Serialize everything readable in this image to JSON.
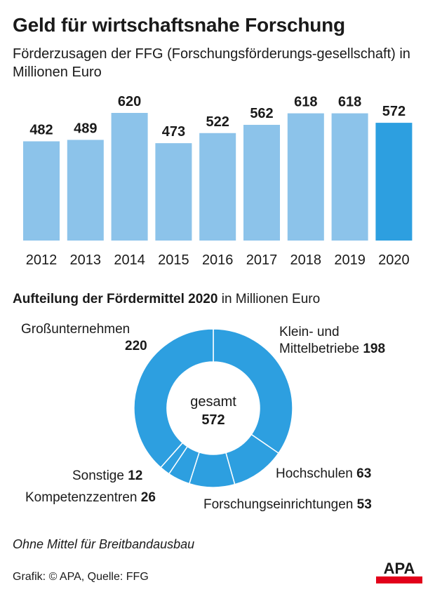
{
  "title": "Geld für wirtschaftsnahe Forschung",
  "subtitle": "Förderzusagen der FFG (Forschungsförderungs-gesellschaft) in Millionen Euro",
  "chart_data": [
    {
      "type": "bar",
      "categories": [
        "2012",
        "2013",
        "2014",
        "2015",
        "2016",
        "2017",
        "2018",
        "2019",
        "2020"
      ],
      "values": [
        482,
        489,
        620,
        473,
        522,
        562,
        618,
        618,
        572
      ],
      "ylim": [
        0,
        620
      ],
      "grid": false,
      "highlight_index": 8,
      "colors": {
        "bar": "#8cc3ea",
        "highlight": "#2d9fe0"
      }
    },
    {
      "type": "pie",
      "donut": true,
      "title_bold": "Aufteilung der Fördermittel 2020",
      "title_rest": "in Millionen Euro",
      "center_label": "gesamt",
      "total": 572,
      "slices": [
        {
          "name": "Klein- und Mittelbetriebe",
          "value": 198
        },
        {
          "name": "Hochschulen",
          "value": 63
        },
        {
          "name": "Forschungseinrichtungen",
          "value": 53
        },
        {
          "name": "Kompetenzzentren",
          "value": 26
        },
        {
          "name": "Sonstige",
          "value": 12
        },
        {
          "name": "Großunternehmen",
          "value": 220
        }
      ],
      "labels": {
        "kmu_line1": "Klein- und",
        "kmu_line2": "Mittelbetriebe",
        "kmu_value": "198",
        "gross_name": "Großunternehmen",
        "gross_value": "220",
        "hoch_name": "Hochschulen",
        "hoch_value": "63",
        "forsch_name": "Forschungseinrichtungen",
        "forsch_value": "53",
        "komp_name": "Kompetenzzentren",
        "komp_value": "26",
        "sonst_name": "Sonstige",
        "sonst_value": "12"
      },
      "colors": {
        "slice": "#2d9fe0",
        "separator": "#ffffff"
      }
    }
  ],
  "note": "Ohne Mittel für Breitbandausbau",
  "source": "Grafik: © APA, Quelle: FFG",
  "logo": {
    "text": "APA",
    "accent": "#e2001a"
  }
}
